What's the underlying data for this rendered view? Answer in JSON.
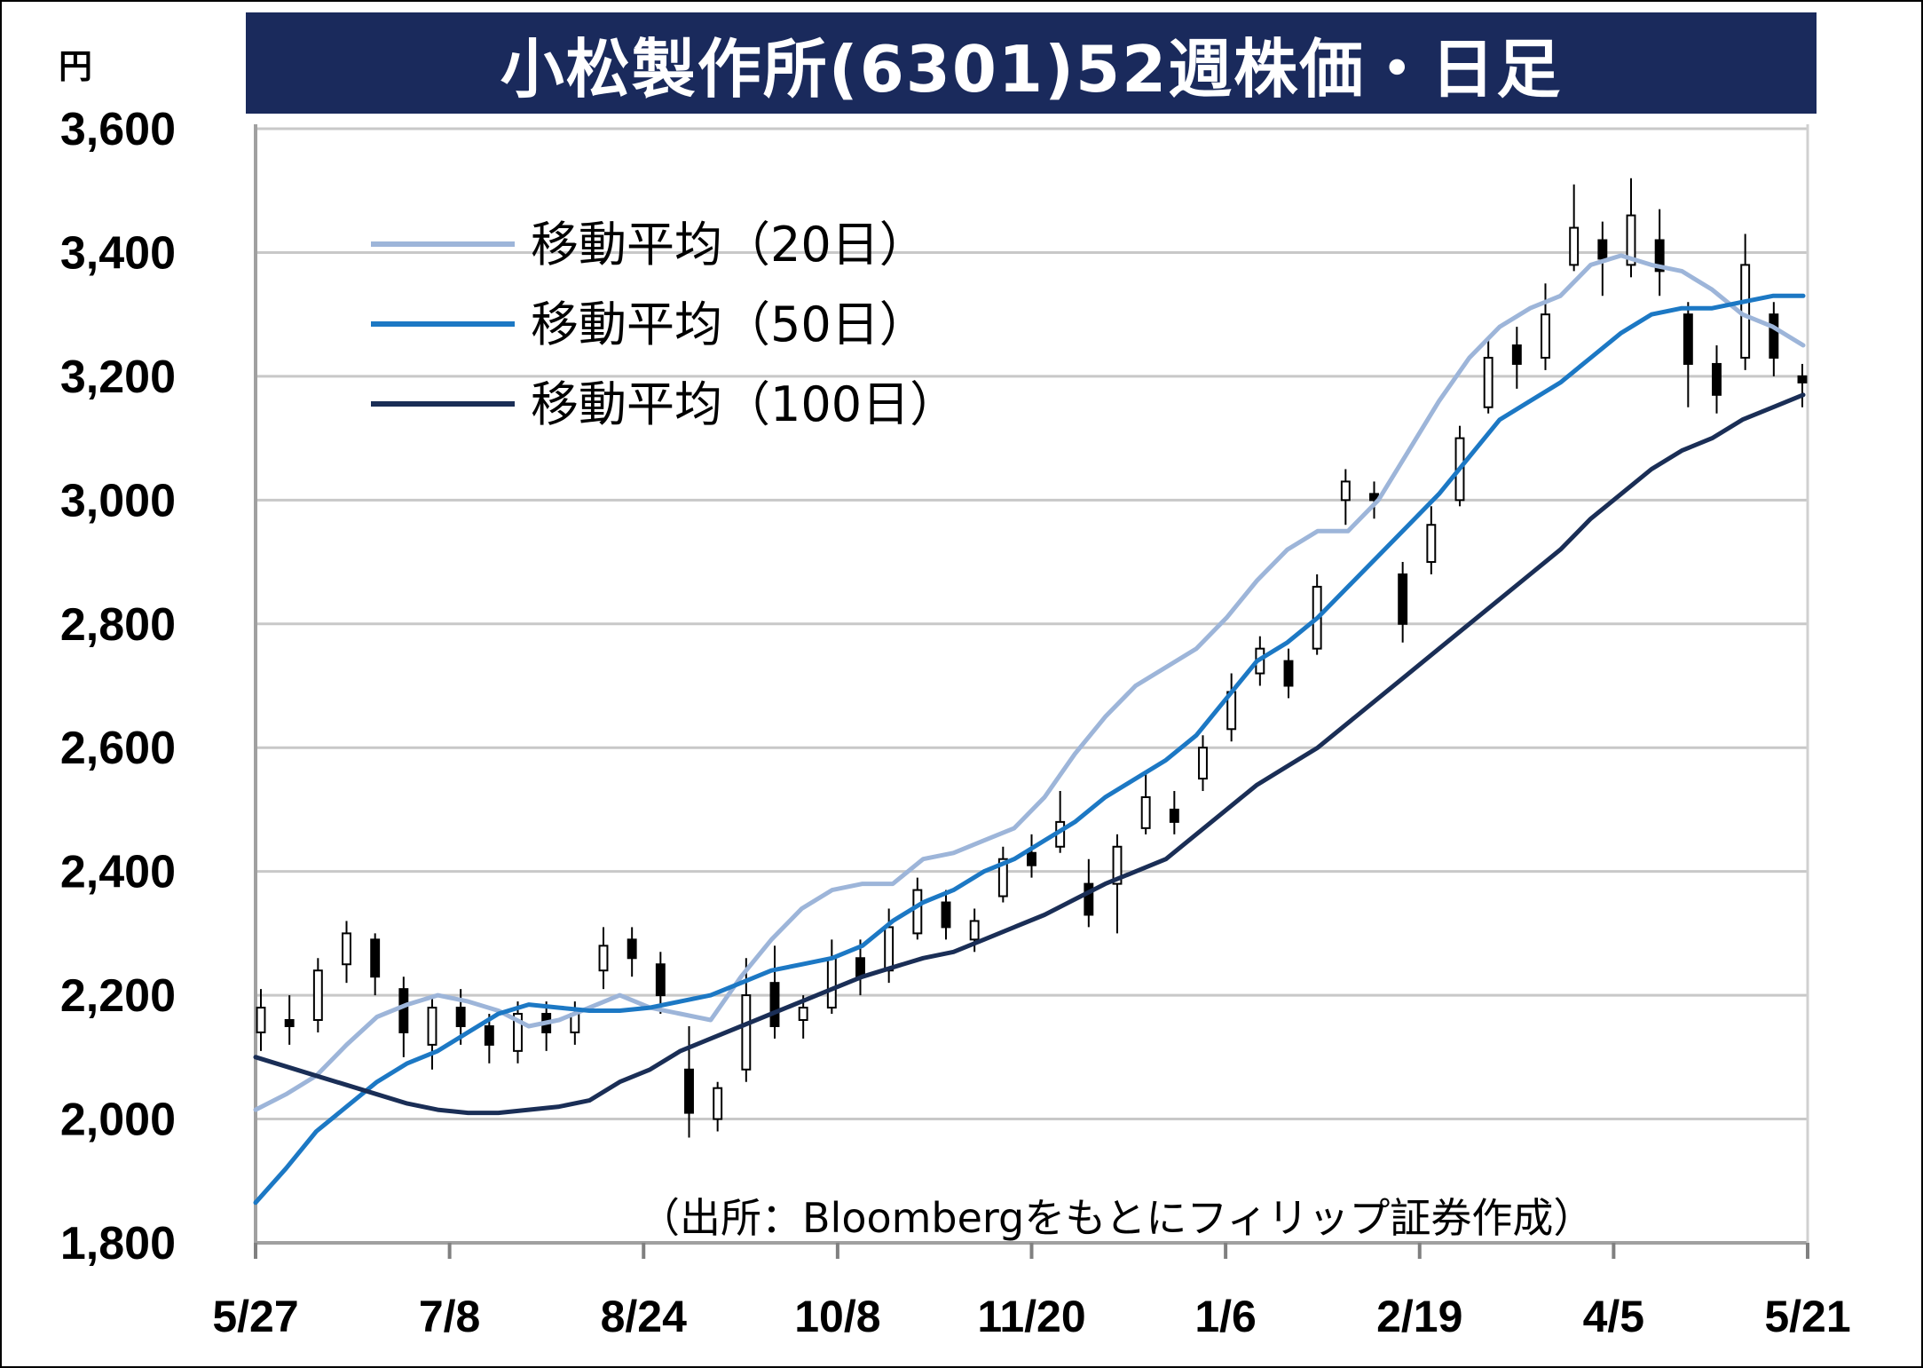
{
  "title": "小松製作所(6301)52週株価・日足",
  "unit": "円",
  "source_note": "（出所：Bloombergをもとにフィリップ証券作成）",
  "colors": {
    "title_bg": "#1a2a5c",
    "ma20": "#9db5d9",
    "ma50": "#1c78c4",
    "ma100": "#1a2e56",
    "grid": "#c8c8c8"
  },
  "chart_data": {
    "type": "line",
    "subtype": "candlestick-with-moving-averages",
    "title": "小松製作所(6301)52週株価・日足",
    "ylabel": "円",
    "ylim": [
      1800,
      3600
    ],
    "yticks": [
      1800,
      2000,
      2200,
      2400,
      2600,
      2800,
      3000,
      3200,
      3400,
      3600
    ],
    "ytick_labels": [
      "1,800",
      "2,000",
      "2,200",
      "2,400",
      "2,600",
      "2,800",
      "3,000",
      "3,200",
      "3,400",
      "3,600"
    ],
    "x_labels": [
      "5/27",
      "7/8",
      "8/24",
      "10/8",
      "11/20",
      "1/6",
      "2/19",
      "4/5",
      "5/21"
    ],
    "grid": true,
    "legend_position": "top-left",
    "series": [
      {
        "name": "移動平均（20日）",
        "color": "#9db5d9",
        "values": [
          2015,
          2040,
          2070,
          2120,
          2165,
          2185,
          2200,
          2190,
          2175,
          2150,
          2160,
          2180,
          2200,
          2180,
          2170,
          2160,
          2230,
          2290,
          2340,
          2370,
          2380,
          2380,
          2420,
          2430,
          2450,
          2470,
          2520,
          2590,
          2650,
          2700,
          2730,
          2760,
          2810,
          2870,
          2920,
          2950,
          2950,
          3000,
          3080,
          3160,
          3230,
          3280,
          3310,
          3330,
          3380,
          3395,
          3380,
          3370,
          3340,
          3300,
          3280,
          3250
        ]
      },
      {
        "name": "移動平均（50日）",
        "color": "#1c78c4",
        "values": [
          1865,
          1920,
          1980,
          2020,
          2060,
          2090,
          2110,
          2140,
          2170,
          2185,
          2180,
          2175,
          2175,
          2180,
          2190,
          2200,
          2220,
          2240,
          2250,
          2260,
          2280,
          2320,
          2350,
          2370,
          2400,
          2420,
          2450,
          2480,
          2520,
          2550,
          2580,
          2620,
          2680,
          2740,
          2770,
          2810,
          2860,
          2910,
          2960,
          3010,
          3070,
          3130,
          3160,
          3190,
          3230,
          3270,
          3300,
          3310,
          3310,
          3320,
          3330,
          3330
        ]
      },
      {
        "name": "移動平均（100日）",
        "color": "#1a2e56",
        "values": [
          2100,
          2085,
          2070,
          2055,
          2040,
          2025,
          2015,
          2010,
          2010,
          2015,
          2020,
          2030,
          2060,
          2080,
          2110,
          2130,
          2150,
          2170,
          2190,
          2210,
          2230,
          2245,
          2260,
          2270,
          2290,
          2310,
          2330,
          2355,
          2380,
          2400,
          2420,
          2460,
          2500,
          2540,
          2570,
          2600,
          2640,
          2680,
          2720,
          2760,
          2800,
          2840,
          2880,
          2920,
          2970,
          3010,
          3050,
          3080,
          3100,
          3130,
          3150,
          3170
        ]
      }
    ],
    "candles": [
      [
        2140,
        2180,
        2110,
        2210
      ],
      [
        2160,
        2150,
        2120,
        2200
      ],
      [
        2160,
        2240,
        2140,
        2260
      ],
      [
        2250,
        2300,
        2220,
        2320
      ],
      [
        2290,
        2230,
        2200,
        2300
      ],
      [
        2210,
        2140,
        2100,
        2230
      ],
      [
        2120,
        2180,
        2080,
        2200
      ],
      [
        2180,
        2150,
        2120,
        2210
      ],
      [
        2150,
        2120,
        2090,
        2170
      ],
      [
        2110,
        2170,
        2090,
        2190
      ],
      [
        2170,
        2140,
        2110,
        2190
      ],
      [
        2140,
        2170,
        2120,
        2190
      ],
      [
        2240,
        2280,
        2210,
        2310
      ],
      [
        2290,
        2260,
        2230,
        2310
      ],
      [
        2250,
        2200,
        2170,
        2270
      ],
      [
        2080,
        2010,
        1970,
        2150
      ],
      [
        2000,
        2050,
        1980,
        2060
      ],
      [
        2080,
        2200,
        2060,
        2260
      ],
      [
        2220,
        2150,
        2130,
        2280
      ],
      [
        2160,
        2180,
        2130,
        2200
      ],
      [
        2180,
        2260,
        2170,
        2290
      ],
      [
        2260,
        2230,
        2200,
        2290
      ],
      [
        2240,
        2310,
        2220,
        2340
      ],
      [
        2300,
        2370,
        2290,
        2390
      ],
      [
        2350,
        2310,
        2290,
        2370
      ],
      [
        2290,
        2320,
        2270,
        2340
      ],
      [
        2360,
        2420,
        2350,
        2440
      ],
      [
        2430,
        2410,
        2390,
        2460
      ],
      [
        2440,
        2480,
        2430,
        2530
      ],
      [
        2380,
        2330,
        2310,
        2420
      ],
      [
        2380,
        2440,
        2300,
        2460
      ],
      [
        2470,
        2520,
        2460,
        2560
      ],
      [
        2500,
        2480,
        2460,
        2530
      ],
      [
        2550,
        2600,
        2530,
        2620
      ],
      [
        2630,
        2690,
        2610,
        2720
      ],
      [
        2720,
        2760,
        2700,
        2780
      ],
      [
        2740,
        2700,
        2680,
        2760
      ],
      [
        2760,
        2860,
        2750,
        2880
      ],
      [
        3000,
        3030,
        2960,
        3050
      ],
      [
        3010,
        3000,
        2970,
        3030
      ],
      [
        2880,
        2800,
        2770,
        2900
      ],
      [
        2900,
        2960,
        2880,
        2990
      ],
      [
        3000,
        3100,
        2990,
        3120
      ],
      [
        3150,
        3230,
        3140,
        3260
      ],
      [
        3250,
        3220,
        3180,
        3280
      ],
      [
        3230,
        3300,
        3210,
        3350
      ],
      [
        3380,
        3440,
        3370,
        3510
      ],
      [
        3420,
        3390,
        3330,
        3450
      ],
      [
        3380,
        3460,
        3360,
        3520
      ],
      [
        3420,
        3370,
        3330,
        3470
      ],
      [
        3300,
        3220,
        3150,
        3320
      ],
      [
        3220,
        3170,
        3140,
        3250
      ],
      [
        3230,
        3380,
        3210,
        3430
      ],
      [
        3300,
        3230,
        3200,
        3320
      ],
      [
        3200,
        3190,
        3150,
        3220
      ]
    ]
  }
}
